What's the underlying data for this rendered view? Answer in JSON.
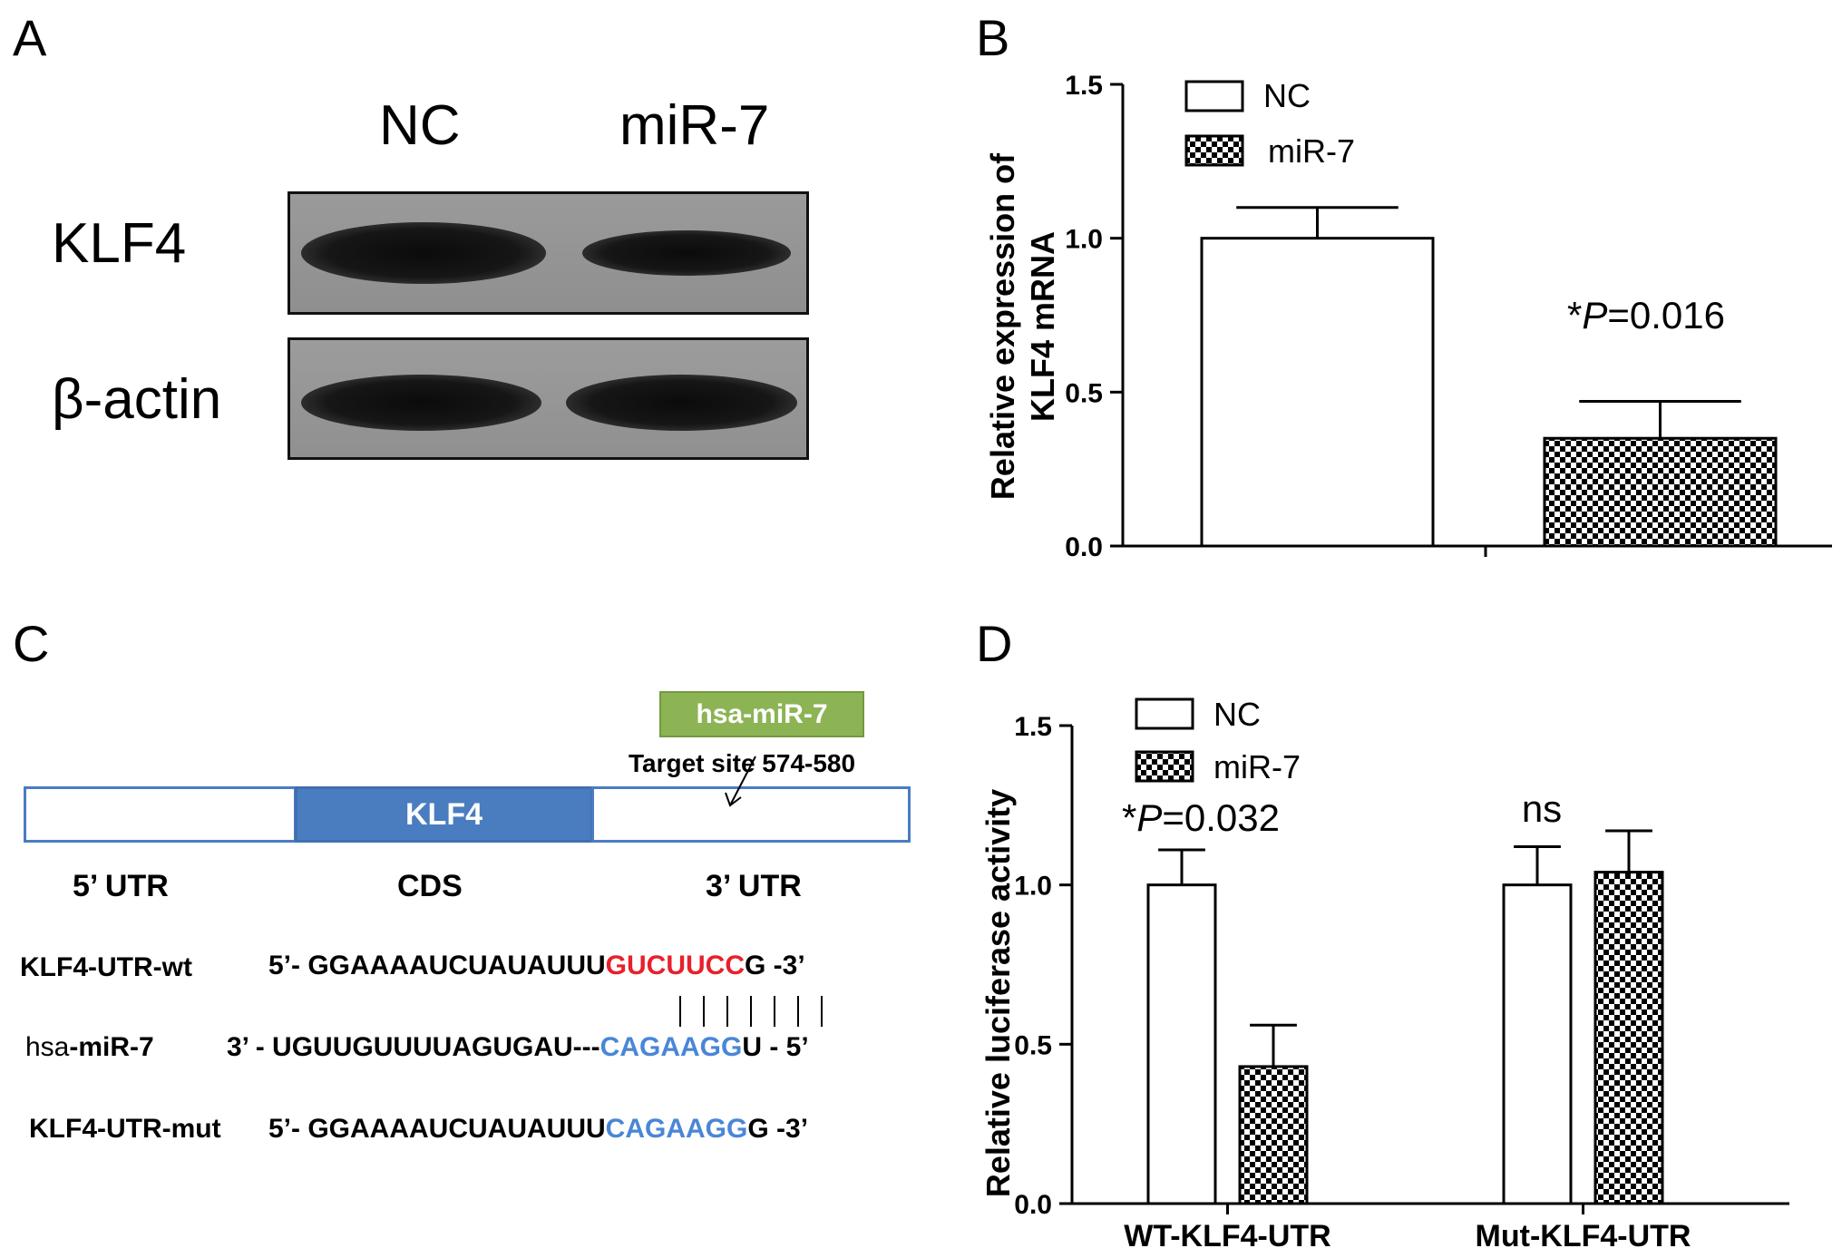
{
  "panels": {
    "a": "A",
    "b": "B",
    "c": "C",
    "d": "D"
  },
  "blot": {
    "lanes": [
      "NC",
      "miR-7"
    ],
    "rows": [
      "KLF4",
      "β-actin"
    ]
  },
  "chart_data": [
    {
      "type": "bar",
      "panel": "B",
      "ylabel_line1": "Relative expression of",
      "ylabel_line2": "KLF4 mRNA",
      "ylim": [
        0,
        1.5
      ],
      "yticks": [
        "0.0",
        "0.5",
        "1.0",
        "1.5"
      ],
      "legend": [
        "NC",
        "miR-7"
      ],
      "legend_position": "top-left",
      "series": [
        {
          "name": "NC",
          "values": [
            1.0
          ],
          "errors": [
            0.1
          ]
        },
        {
          "name": "miR-7",
          "values": [
            0.35
          ],
          "errors": [
            0.12
          ]
        }
      ],
      "annotation": {
        "star": "*",
        "p": "P",
        "rest": "=0.016"
      }
    },
    {
      "type": "bar",
      "panel": "D",
      "ylabel": "Relative luciferase activity",
      "ylim": [
        0,
        1.5
      ],
      "yticks": [
        "0.0",
        "0.5",
        "1.0",
        "1.5"
      ],
      "categories": [
        "WT-KLF4-UTR",
        "Mut-KLF4-UTR"
      ],
      "legend": [
        "NC",
        "miR-7"
      ],
      "legend_position": "top-left",
      "series": [
        {
          "name": "NC",
          "values": [
            1.0,
            1.0
          ],
          "errors": [
            0.11,
            0.12
          ]
        },
        {
          "name": "miR-7",
          "values": [
            0.43,
            1.04
          ],
          "errors": [
            0.13,
            0.13
          ]
        }
      ],
      "annotations": [
        {
          "star": "*",
          "p": "P",
          "rest": "=0.032"
        },
        {
          "text": "ns"
        }
      ]
    }
  ],
  "diagram": {
    "mirna_box": "hsa-miR-7",
    "target_site": "Target site 574-580",
    "cds_label": "KLF4",
    "regions": [
      "5’ UTR",
      "CDS",
      "3’ UTR"
    ],
    "colors": {
      "cds": "#4a7cc0",
      "mirna_box": "#8cb455",
      "red": "#e8202a",
      "blue": "#4a86d6"
    },
    "seq_wt": {
      "name": "KLF4-UTR-wt",
      "prefix": "5’- GGAAAAUCUAUAUUU",
      "site": "GUCUUCC",
      "suffix": "G -3’"
    },
    "seq_mir": {
      "name_a": "hsa",
      "name_b": "-miR-7",
      "prefix": "3’ - UGUUGUUUUAGUGAU---",
      "site": "CAGAAGG",
      "suffix": "U - 5’"
    },
    "seq_mut": {
      "name": "KLF4-UTR-mut",
      "prefix": "5’- GGAAAAUCUAUAUUU",
      "site": "CAGAAGG",
      "suffix": "G -3’"
    }
  }
}
